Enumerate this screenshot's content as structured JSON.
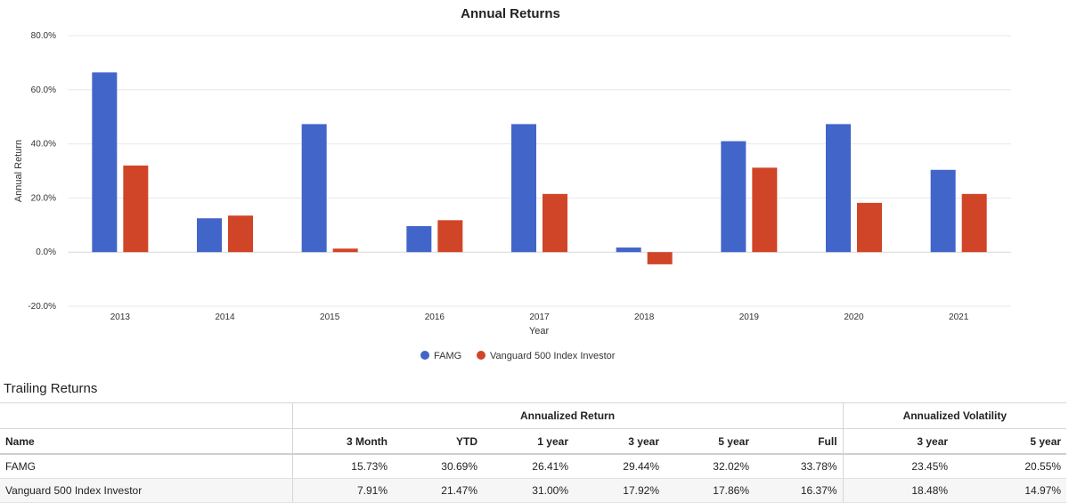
{
  "chart_data": {
    "type": "bar",
    "title": "Annual Returns",
    "xlabel": "Year",
    "ylabel": "Annual Return",
    "ylim": [
      -20,
      80
    ],
    "yticks": [
      "80.0%",
      "60.0%",
      "40.0%",
      "20.0%",
      "0.0%",
      "-20.0%"
    ],
    "ytick_values": [
      80,
      60,
      40,
      20,
      0,
      -20
    ],
    "categories": [
      "2013",
      "2014",
      "2015",
      "2016",
      "2017",
      "2018",
      "2019",
      "2020",
      "2021"
    ],
    "series": [
      {
        "name": "FAMG",
        "color": "#4265c9",
        "values": [
          66.4,
          12.5,
          47.3,
          9.6,
          47.3,
          1.7,
          41.0,
          47.3,
          30.4
        ]
      },
      {
        "name": "Vanguard 500 Index Investor",
        "color": "#d04528",
        "values": [
          32.0,
          13.5,
          1.3,
          11.8,
          21.5,
          -4.5,
          31.2,
          18.2,
          21.5
        ]
      }
    ],
    "grid": true,
    "legend": "bottom-center"
  },
  "trailing": {
    "title": "Trailing Returns",
    "group_headers": {
      "annualized_return": "Annualized Return",
      "annualized_volatility": "Annualized Volatility"
    },
    "columns": [
      "Name",
      "3 Month",
      "YTD",
      "1 year",
      "3 year",
      "5 year",
      "Full",
      "3 year",
      "5 year"
    ],
    "rows": [
      {
        "name": "FAMG",
        "values": [
          "15.73%",
          "30.69%",
          "26.41%",
          "29.44%",
          "32.02%",
          "33.78%",
          "23.45%",
          "20.55%"
        ]
      },
      {
        "name": "Vanguard 500 Index Investor",
        "values": [
          "7.91%",
          "21.47%",
          "31.00%",
          "17.92%",
          "17.86%",
          "16.37%",
          "18.48%",
          "14.97%"
        ]
      }
    ]
  }
}
